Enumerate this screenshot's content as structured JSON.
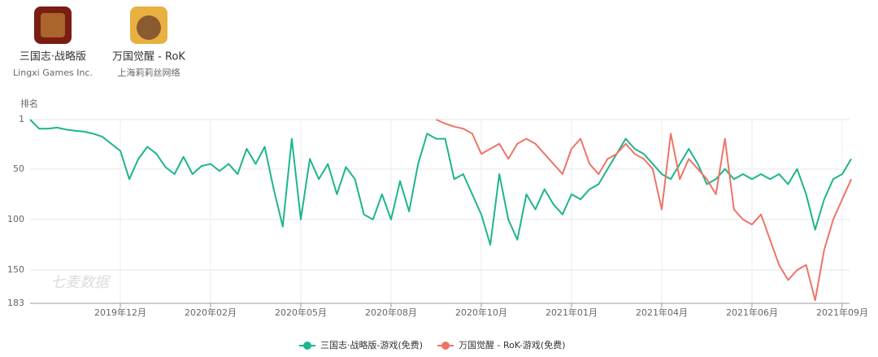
{
  "apps": [
    {
      "name": "三国志·战略版",
      "developer": "Lingxi Games Inc."
    },
    {
      "name": "万国觉醒 - RoK",
      "developer": "上海莉莉丝网络"
    }
  ],
  "chart_data": {
    "type": "line",
    "y_label": "排名",
    "watermark": "七麦数据",
    "grid": true,
    "y_inverted": true,
    "categories": [
      null,
      null,
      null,
      null,
      null,
      null,
      null,
      null,
      null,
      null,
      "2019年12月",
      null,
      null,
      null,
      null,
      null,
      null,
      null,
      null,
      null,
      "2020年02月",
      null,
      null,
      null,
      null,
      null,
      null,
      null,
      null,
      null,
      "2020年05月",
      null,
      null,
      null,
      null,
      null,
      null,
      null,
      null,
      null,
      "2020年08月",
      null,
      null,
      null,
      null,
      null,
      null,
      null,
      null,
      null,
      "2020年10月",
      null,
      null,
      null,
      null,
      null,
      null,
      null,
      null,
      null,
      "2021年01月",
      null,
      null,
      null,
      null,
      null,
      null,
      null,
      null,
      null,
      "2021年04月",
      null,
      null,
      null,
      null,
      null,
      null,
      null,
      null,
      null,
      "2021年06月",
      null,
      null,
      null,
      null,
      null,
      null,
      null,
      null,
      null,
      "2021年09月",
      null
    ],
    "ylim": [
      1,
      183
    ],
    "yticks": [
      1,
      50,
      100,
      150,
      183
    ],
    "series": [
      {
        "name": "三国志·战略版-游戏(免费)",
        "color": "#1db58e",
        "values": [
          1,
          10,
          10,
          9,
          11,
          12,
          13,
          15,
          18,
          25,
          32,
          60,
          40,
          28,
          35,
          48,
          55,
          38,
          55,
          47,
          45,
          52,
          45,
          55,
          30,
          45,
          28,
          70,
          107,
          20,
          100,
          40,
          60,
          45,
          75,
          48,
          60,
          95,
          100,
          75,
          100,
          62,
          92,
          45,
          15,
          20,
          20,
          60,
          55,
          75,
          95,
          125,
          55,
          100,
          120,
          75,
          90,
          70,
          85,
          95,
          75,
          80,
          70,
          65,
          50,
          35,
          20,
          30,
          35,
          45,
          55,
          60,
          45,
          30,
          45,
          65,
          60,
          50,
          60,
          55,
          60,
          55,
          60,
          55,
          65,
          50,
          75,
          110,
          80,
          60,
          55,
          40
        ]
      },
      {
        "name": "万国觉醒 - RoK-游戏(免费)",
        "color": "#ee7468",
        "values": [
          null,
          null,
          null,
          null,
          null,
          null,
          null,
          null,
          null,
          null,
          null,
          null,
          null,
          null,
          null,
          null,
          null,
          null,
          null,
          null,
          null,
          null,
          null,
          null,
          null,
          null,
          null,
          null,
          null,
          null,
          null,
          null,
          null,
          null,
          null,
          null,
          null,
          null,
          null,
          null,
          null,
          null,
          null,
          null,
          null,
          1,
          5,
          8,
          10,
          15,
          35,
          30,
          25,
          40,
          25,
          20,
          25,
          35,
          45,
          55,
          30,
          20,
          45,
          55,
          40,
          35,
          25,
          35,
          40,
          50,
          90,
          15,
          60,
          40,
          50,
          60,
          75,
          20,
          90,
          100,
          105,
          95,
          120,
          145,
          160,
          150,
          145,
          180,
          130,
          100,
          80,
          60
        ]
      }
    ]
  }
}
